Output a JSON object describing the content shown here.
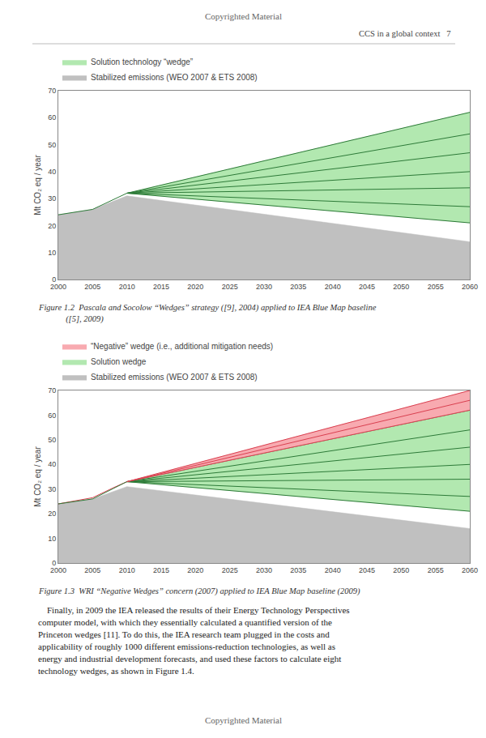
{
  "chart_data": [
    {
      "type": "area",
      "title": [
        "Figure 1.2  Pascala and Socolow “Wedges” strategy ([9], 2004) applied to IEA Blue Map baseline",
        "             ([5], 2009)"
      ],
      "ylabel": "Mt CO₂ eq / year",
      "xlim": [
        2000,
        2060
      ],
      "xticks": [
        2000,
        2005,
        2010,
        2015,
        2020,
        2025,
        2030,
        2035,
        2040,
        2045,
        2050,
        2055,
        2060
      ],
      "ylim": [
        0,
        70
      ],
      "yticks": [
        0,
        10,
        20,
        30,
        40,
        50,
        60,
        70
      ],
      "grid": false,
      "legend": "upper left",
      "series": [
        {
          "name": "Stabilized emissions (WEO 2007 & ETS 2008)",
          "type": "area",
          "color": "#c0c0c0",
          "x": [
            2000,
            2005,
            2010,
            2060
          ],
          "values": [
            24,
            26,
            31,
            14
          ]
        },
        {
          "name": "Solution technology “wedge”",
          "type": "area",
          "color": "#b2e8b0",
          "x": [
            2010,
            2060,
            2060,
            2010
          ],
          "values": [
            32,
            62,
            21,
            32
          ]
        },
        {
          "type": "line",
          "color": "#2d7a38",
          "x": [
            2010,
            2060
          ],
          "values": [
            32,
            21
          ]
        },
        {
          "type": "line",
          "color": "#2d7a38",
          "x": [
            2010,
            2060
          ],
          "values": [
            32,
            27
          ]
        },
        {
          "type": "line",
          "color": "#2d7a38",
          "x": [
            2010,
            2060
          ],
          "values": [
            32,
            34
          ]
        },
        {
          "type": "line",
          "color": "#2d7a38",
          "x": [
            2010,
            2060
          ],
          "values": [
            32,
            40
          ]
        },
        {
          "type": "line",
          "color": "#2d7a38",
          "x": [
            2010,
            2060
          ],
          "values": [
            32,
            47
          ]
        },
        {
          "type": "line",
          "color": "#2d7a38",
          "x": [
            2010,
            2060
          ],
          "values": [
            32,
            54
          ]
        },
        {
          "type": "line",
          "color": "#2d7a38",
          "x": [
            2010,
            2060
          ],
          "values": [
            32,
            62
          ]
        },
        {
          "type": "line",
          "color": "#2d7a38",
          "x": [
            2000,
            2005,
            2010
          ],
          "values": [
            24,
            26,
            32
          ]
        }
      ]
    },
    {
      "type": "area",
      "title": [
        "Figure 1.3  WRI “Negative Wedges” concern (2007) applied to IEA Blue Map baseline (2009)"
      ],
      "ylabel": "Mt CO₂ eq / year",
      "xlim": [
        2000,
        2060
      ],
      "xticks": [
        2000,
        2005,
        2010,
        2015,
        2020,
        2025,
        2030,
        2035,
        2040,
        2045,
        2050,
        2055,
        2060
      ],
      "ylim": [
        0,
        70
      ],
      "yticks": [
        0,
        10,
        20,
        30,
        40,
        50,
        60,
        70
      ],
      "grid": false,
      "legend": "upper left",
      "series": [
        {
          "name": "Stabilized emissions (WEO 2007 & ETS 2008)",
          "type": "area",
          "color": "#c0c0c0",
          "x": [
            2000,
            2005,
            2010,
            2060
          ],
          "values": [
            24,
            26,
            31,
            14
          ]
        },
        {
          "name": "Solution wedge",
          "type": "area",
          "color": "#b2e8b0",
          "x": [
            2010,
            2060,
            2060,
            2010
          ],
          "values": [
            33,
            62,
            21,
            33
          ]
        },
        {
          "type": "line",
          "color": "#2d7a38",
          "x": [
            2010,
            2060
          ],
          "values": [
            33,
            21
          ]
        },
        {
          "type": "line",
          "color": "#2d7a38",
          "x": [
            2010,
            2060
          ],
          "values": [
            33,
            27
          ]
        },
        {
          "type": "line",
          "color": "#2d7a38",
          "x": [
            2010,
            2060
          ],
          "values": [
            33,
            34
          ]
        },
        {
          "type": "line",
          "color": "#2d7a38",
          "x": [
            2010,
            2060
          ],
          "values": [
            33,
            40
          ]
        },
        {
          "type": "line",
          "color": "#2d7a38",
          "x": [
            2010,
            2060
          ],
          "values": [
            33,
            47
          ]
        },
        {
          "type": "line",
          "color": "#2d7a38",
          "x": [
            2010,
            2060
          ],
          "values": [
            33,
            54
          ]
        },
        {
          "type": "line",
          "color": "#2d7a38",
          "x": [
            2010,
            2060
          ],
          "values": [
            33,
            62
          ]
        },
        {
          "name": "“Negative” wedge (i.e., additional mitigation needs)",
          "type": "area",
          "color": "#f8aab0",
          "x": [
            2010,
            2060,
            2060,
            2010
          ],
          "values": [
            33,
            70,
            62,
            33
          ]
        },
        {
          "type": "line",
          "color": "#d94050",
          "x": [
            2010,
            2060
          ],
          "values": [
            33,
            62
          ]
        },
        {
          "type": "line",
          "color": "#d94050",
          "x": [
            2010,
            2060
          ],
          "values": [
            33,
            66
          ]
        },
        {
          "type": "line",
          "color": "#d94050",
          "x": [
            2010,
            2060
          ],
          "values": [
            33,
            70
          ]
        },
        {
          "type": "line",
          "color": "#d94050",
          "x": [
            2000,
            2005,
            2008,
            2010
          ],
          "values": [
            24,
            26.5,
            30.5,
            33
          ]
        },
        {
          "type": "line",
          "color": "#2d7a38",
          "x": [
            2000,
            2005,
            2010
          ],
          "values": [
            24,
            26,
            33
          ]
        }
      ]
    }
  ],
  "annotations": [
    "Copyrighted Material",
    "CCS in a global context   7",
    "    Finally, in 2009 the IEA released the results of their Energy Technology Perspectives",
    "computer model, with which they essentially calculated a quantified version of the",
    "Princeton wedges [11]. To do this, the IEA research team plugged in the costs and",
    "applicability of roughly 1000 different emissions-reduction technologies, as well as",
    "energy and industrial development forecasts, and used these factors to calculate eight",
    "technology wedges, as shown in Figure 1.4.",
    "Copyrighted Material"
  ]
}
